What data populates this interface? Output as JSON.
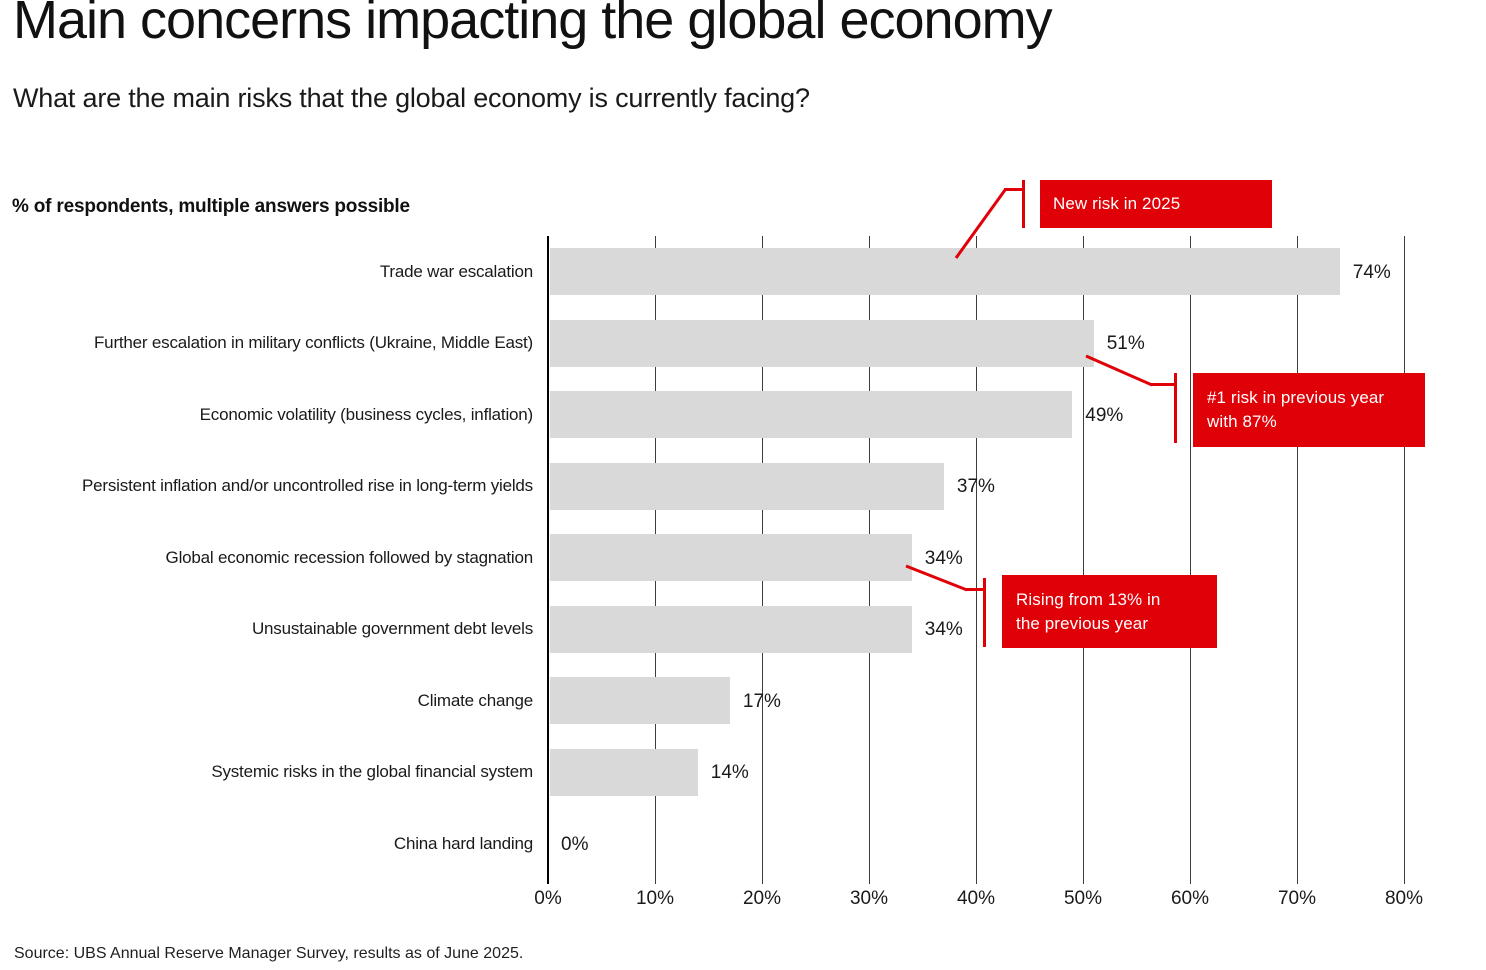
{
  "title": "Main concerns impacting the global economy",
  "subtitle": "What are the main risks that the global economy is currently facing?",
  "note": "% of respondents, multiple answers possible",
  "source": "Source: UBS Annual Reserve Manager Survey, results as of June 2025.",
  "colors": {
    "accent_red": "#e00007",
    "bar_fill": "#d9d9d9",
    "gridline": "#3d3d3d",
    "axis": "#000000",
    "text": "#1a1a1a"
  },
  "callouts": {
    "new_risk": {
      "text": "New risk in 2025"
    },
    "prev_year_top_risk": {
      "line1": "#1 risk in previous year",
      "line2": "with 87%"
    },
    "rising": {
      "line1": "Rising from 13% in",
      "line2": "the previous year"
    }
  },
  "chart_data": {
    "type": "bar",
    "orientation": "horizontal",
    "title": "Main concerns impacting the global economy",
    "categories": [
      "Trade war escalation",
      "Further escalation in military conflicts (Ukraine, Middle East)",
      "Economic volatility (business cycles, inflation)",
      "Persistent inflation and/or uncontrolled rise in long-term yields",
      "Global economic recession followed by stagnation",
      "Unsustainable government debt levels",
      "Climate change",
      "Systemic risks in the global financial system",
      "China hard landing"
    ],
    "values": [
      74,
      51,
      49,
      37,
      34,
      34,
      17,
      14,
      0
    ],
    "value_labels": [
      "74%",
      "51%",
      "49%",
      "37%",
      "34%",
      "34%",
      "17%",
      "14%",
      "0%"
    ],
    "xlabel": "% of respondents",
    "ylabel": "",
    "xlim": [
      0,
      80
    ],
    "x_ticks": [
      "0%",
      "10%",
      "20%",
      "30%",
      "40%",
      "50%",
      "60%",
      "70%",
      "80%"
    ],
    "grid": "vertical",
    "legend": null,
    "annotations": [
      {
        "text": "New risk in 2025",
        "target": "Trade war escalation"
      },
      {
        "text": "#1 risk in previous year with 87%",
        "target": "Further escalation in military conflicts (Ukraine, Middle East)"
      },
      {
        "text": "Rising from 13% in the previous year",
        "target": "Global economic recession followed by stagnation"
      }
    ]
  }
}
